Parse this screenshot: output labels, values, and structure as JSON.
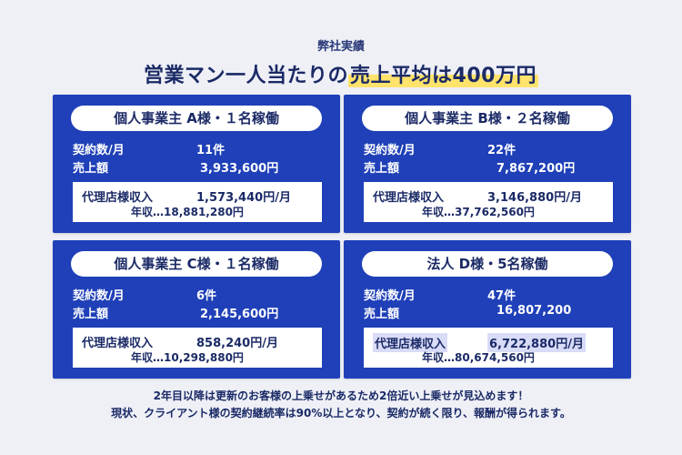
{
  "header": {
    "subtitle": "弊社実績",
    "title_prefix": "営業マン一人当たりの",
    "title_highlight": "売上平均は400万円"
  },
  "cards": [
    {
      "heading": "個人事業主  A様・１名稼働",
      "contracts_label": "契約数/月",
      "contracts_value": "11件",
      "sales_label": "売上額",
      "sales_value": "3,933,600円",
      "agency_label": "代理店様収入",
      "agency_value": "1,573,440円/月",
      "annual": "年収…18,881,280円"
    },
    {
      "heading": "個人事業主 B様・２名稼働",
      "contracts_label": "契約数/月",
      "contracts_value": "22件",
      "sales_label": "売上額",
      "sales_value": "7,867,200円",
      "agency_label": "代理店様収入",
      "agency_value": "3,146,880円/月",
      "annual": "年収…37,762,560円"
    },
    {
      "heading": "個人事業主 C様・１名稼働",
      "contracts_label": "契約数/月",
      "contracts_value": "6件",
      "sales_label": "売上額",
      "sales_value": "2,145,600円",
      "agency_label": "代理店様収入",
      "agency_value": "858,240円/月",
      "annual": "年収…10,298,880円"
    },
    {
      "heading": "法人 D様・5名稼働",
      "contracts_label": "契約数/月",
      "contracts_value": "47件",
      "sales_label": "売上額",
      "sales_value": "16,807,200",
      "agency_label": "代理店様収入",
      "agency_value": "6,722,880円/月",
      "annual": "年収…80,674,560円"
    }
  ],
  "footer": {
    "line1": "2年目以降は更新のお客様の上乗せがあるため2倍近い上乗せが見込めます！",
    "line2": "現状、クライアント様の契約継続率は90%以上となり、契約が続く限り、報酬が得られます。"
  },
  "colors": {
    "card_bg": "#1f40b8",
    "title_highlight": "#ffe36b",
    "text_dark": "#1b2a66"
  }
}
